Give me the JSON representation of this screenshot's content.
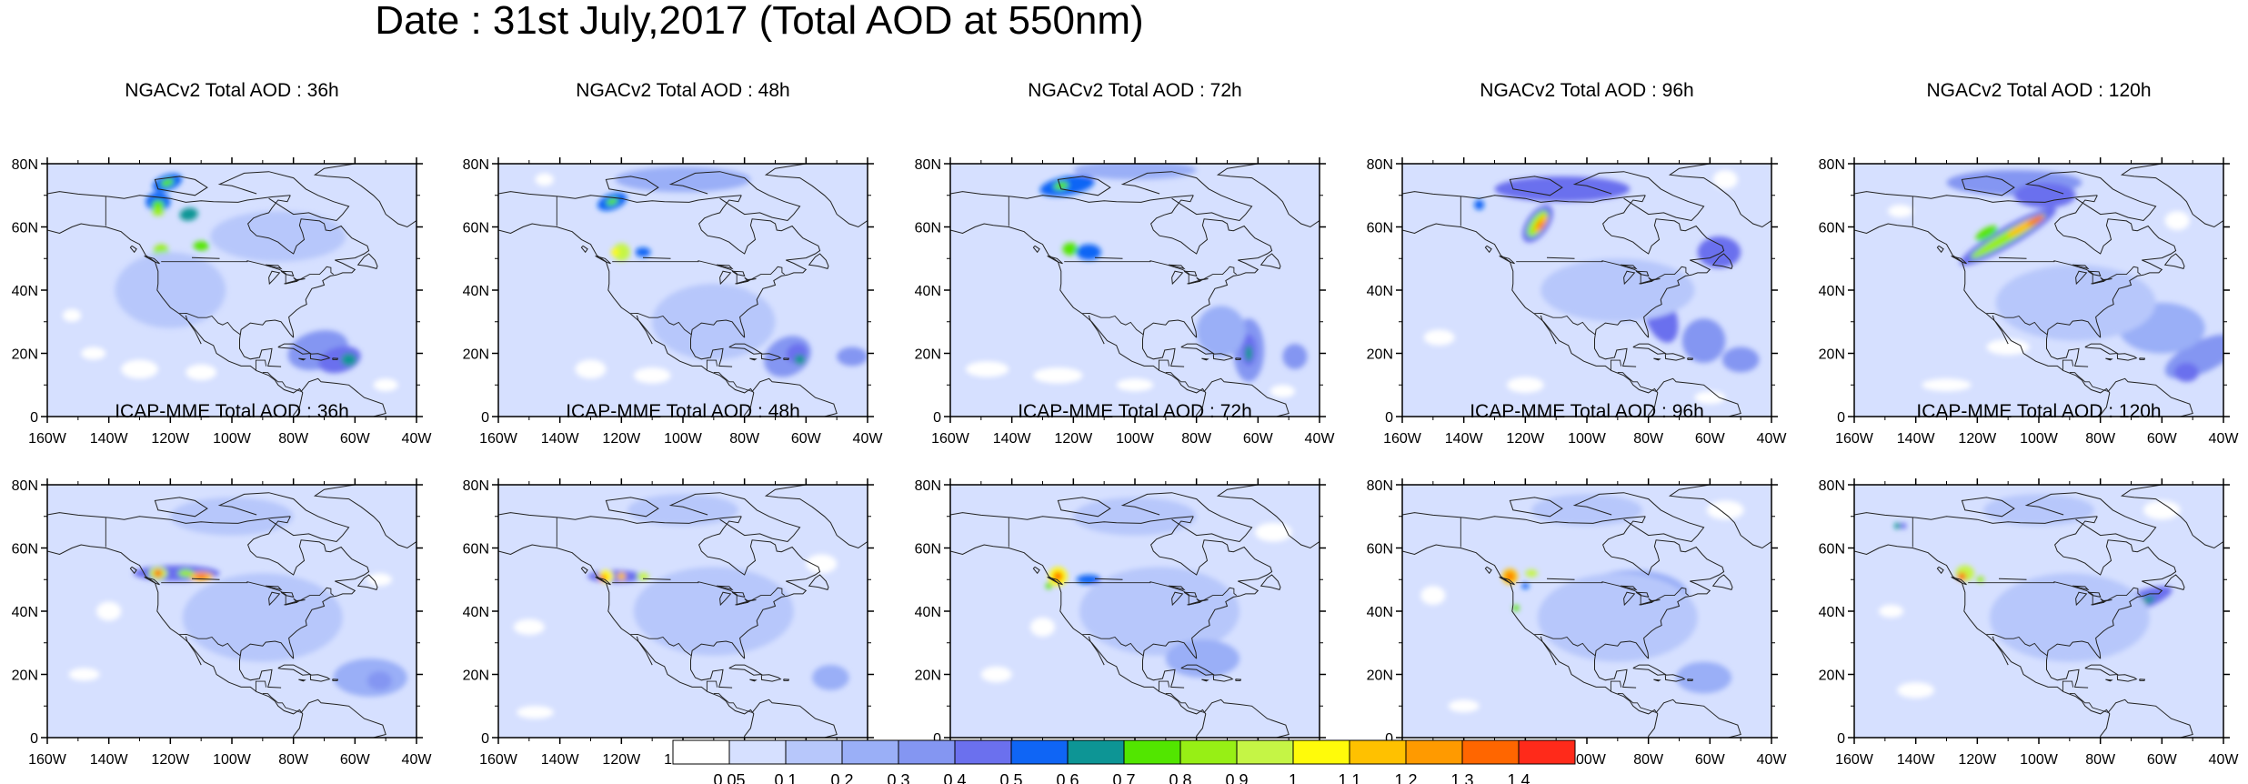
{
  "title": "Date : 31st July,2017 (Total AOD at 550nm)",
  "axes": {
    "lat_labels": [
      "80N",
      "60N",
      "40N",
      "20N",
      "0"
    ],
    "lon_labels": [
      "160W",
      "140W",
      "120W",
      "100W",
      "80W",
      "60W",
      "40W"
    ],
    "lat_range": [
      0,
      80
    ],
    "lon_range": [
      -160,
      -40
    ]
  },
  "panels": [
    {
      "title": "NGACv2 Total AOD : 36h",
      "model": "NGACv2",
      "lead_time": "36h"
    },
    {
      "title": "NGACv2 Total AOD : 48h",
      "model": "NGACv2",
      "lead_time": "48h"
    },
    {
      "title": "NGACv2 Total AOD : 72h",
      "model": "NGACv2",
      "lead_time": "72h"
    },
    {
      "title": "NGACv2 Total AOD : 96h",
      "model": "NGACv2",
      "lead_time": "96h"
    },
    {
      "title": "NGACv2 Total AOD : 120h",
      "model": "NGACv2",
      "lead_time": "120h"
    },
    {
      "title": "ICAP-MME Total AOD : 36h",
      "model": "ICAP-MME",
      "lead_time": "36h"
    },
    {
      "title": "ICAP-MME Total AOD : 48h",
      "model": "ICAP-MME",
      "lead_time": "48h"
    },
    {
      "title": "ICAP-MME Total AOD : 72h",
      "model": "ICAP-MME",
      "lead_time": "72h"
    },
    {
      "title": "ICAP-MME Total AOD : 96h",
      "model": "ICAP-MME",
      "lead_time": "96h"
    },
    {
      "title": "ICAP-MME Total AOD : 120h",
      "model": "ICAP-MME",
      "lead_time": "120h"
    }
  ],
  "colorbar": {
    "labels": [
      "0.05",
      "0.1",
      "0.2",
      "0.3",
      "0.4",
      "0.5",
      "0.6",
      "0.7",
      "0.8",
      "0.9",
      "1",
      "1.1",
      "1.2",
      "1.3",
      "1.4"
    ],
    "colors": [
      "#ffffff",
      "#d6e0ff",
      "#b7c7fb",
      "#9aaff7",
      "#8496f2",
      "#6b70ee",
      "#0f65f5",
      "#0d9595",
      "#52e600",
      "#97ef15",
      "#c5f545",
      "#fffb0a",
      "#ffc100",
      "#ff9a00",
      "#ff6600",
      "#ff2a1a"
    ]
  }
}
